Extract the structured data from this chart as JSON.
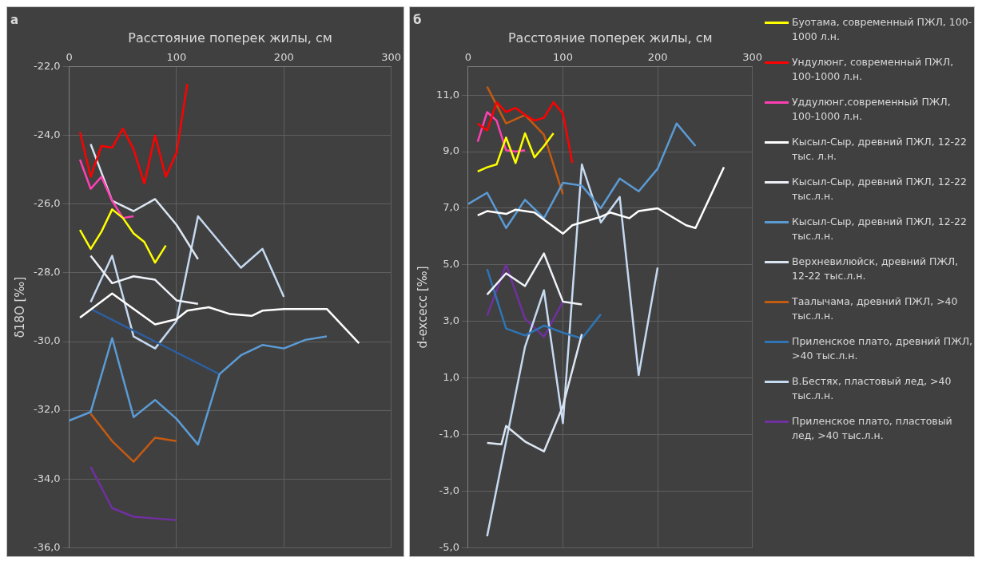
{
  "chart_data": [
    {
      "type": "line",
      "title": "а",
      "xlabel": "Расстояние поперек жилы, см",
      "ylabel": "δ18O [‰]",
      "xlim": [
        0,
        300
      ],
      "xticks": [
        0,
        100,
        200,
        300
      ],
      "ylim": [
        -36,
        -22
      ],
      "yticks": [
        {
          "value": -36,
          "label": "-36,0"
        },
        {
          "value": -34,
          "label": "-34,0"
        },
        {
          "value": -32,
          "label": "-32,0"
        },
        {
          "value": -30,
          "label": "-30,0"
        },
        {
          "value": -28,
          "label": "-28,0"
        },
        {
          "value": -26,
          "label": "-26,0"
        },
        {
          "value": -24,
          "label": "-24,0"
        },
        {
          "value": -22,
          "label": "-22,0"
        }
      ],
      "grid": true,
      "series": [
        {
          "color": "#ffff00",
          "x": [
            10,
            20,
            30,
            40,
            50,
            60,
            70,
            80,
            90
          ],
          "values": [
            -26.75,
            -27.3,
            -26.8,
            -26.15,
            -26.4,
            -26.85,
            -27.1,
            -27.7,
            -27.2
          ]
        },
        {
          "color": "#ff0000",
          "x": [
            10,
            20,
            30,
            40,
            50,
            60,
            70,
            80,
            90,
            100,
            110
          ],
          "values": [
            -23.9,
            -25.2,
            -24.3,
            -24.35,
            -23.8,
            -24.4,
            -25.4,
            -24.0,
            -25.2,
            -24.5,
            -22.5
          ]
        },
        {
          "color": "#ff3fb4",
          "x": [
            10,
            20,
            30,
            40,
            50,
            60
          ],
          "values": [
            -24.7,
            -25.55,
            -25.2,
            -25.9,
            -26.4,
            -26.35
          ]
        },
        {
          "color": "#ffffff",
          "x": [
            10,
            40,
            80,
            100,
            110,
            130,
            150,
            170,
            180,
            200,
            240,
            270
          ],
          "values": [
            -29.3,
            -28.6,
            -29.5,
            -29.35,
            -29.1,
            -29.0,
            -29.2,
            -29.25,
            -29.1,
            -29.05,
            -29.05,
            -30.05
          ]
        },
        {
          "color": "#eef2f8",
          "x": [
            20,
            40,
            60,
            80,
            100,
            120
          ],
          "values": [
            -27.5,
            -28.3,
            -28.1,
            -28.2,
            -28.8,
            -28.9
          ]
        },
        {
          "color": "#5b9bd5",
          "x": [
            0,
            20,
            40,
            60,
            80,
            100,
            120,
            140,
            160,
            180,
            200,
            220,
            240
          ],
          "values": [
            -32.3,
            -32.05,
            -29.9,
            -32.2,
            -31.7,
            -32.25,
            -33.0,
            -30.95,
            -30.4,
            -30.1,
            -30.2,
            -29.95,
            -29.85
          ]
        },
        {
          "color": "#dce6f2",
          "x": [
            20,
            40,
            60,
            80,
            100,
            120
          ],
          "values": [
            -24.25,
            -25.9,
            -26.2,
            -25.85,
            -26.6,
            -27.6
          ]
        },
        {
          "color": "#c55a11",
          "x": [
            20,
            40,
            60,
            80,
            100
          ],
          "values": [
            -32.1,
            -32.9,
            -33.5,
            -32.8,
            -32.9
          ]
        },
        {
          "color": "#2e5e9e",
          "x": [
            20,
            140
          ],
          "values": [
            -29.05,
            -30.95
          ]
        },
        {
          "color": "#c5d9f1",
          "x": [
            20,
            40,
            60,
            80,
            100,
            120,
            160,
            180,
            200
          ],
          "values": [
            -28.85,
            -27.5,
            -29.85,
            -30.2,
            -29.4,
            -26.35,
            -27.85,
            -27.3,
            -28.7
          ]
        },
        {
          "color": "#7030a0",
          "x": [
            20,
            40,
            60,
            80,
            100
          ],
          "values": [
            -33.65,
            -34.85,
            -35.1,
            -35.15,
            -35.2
          ]
        }
      ]
    },
    {
      "type": "line",
      "title": "б",
      "xlabel": "Расстояние поперек жилы, см",
      "ylabel": "d-excecc [‰]",
      "xlim": [
        0,
        300
      ],
      "xticks": [
        0,
        100,
        200,
        300
      ],
      "ylim": [
        -5,
        12
      ],
      "yticks": [
        {
          "value": -5,
          "label": "-5,0"
        },
        {
          "value": -3,
          "label": "-3,0"
        },
        {
          "value": -1,
          "label": "-1,0"
        },
        {
          "value": 1,
          "label": "1,0"
        },
        {
          "value": 3,
          "label": "3,0"
        },
        {
          "value": 5,
          "label": "5,0"
        },
        {
          "value": 7,
          "label": "7,0"
        },
        {
          "value": 9,
          "label": "9,0"
        },
        {
          "value": 11,
          "label": "11,0"
        }
      ],
      "grid": true,
      "legend": "right",
      "series": [
        {
          "name": "Буотама, современный ПЖЛ, 100-1000 л.н.",
          "color": "#ffff00",
          "x": [
            10,
            20,
            30,
            40,
            50,
            60,
            70,
            80,
            90
          ],
          "values": [
            8.3,
            8.45,
            8.55,
            9.5,
            8.6,
            9.65,
            8.8,
            9.2,
            9.65
          ]
        },
        {
          "name": "Ундулюнг, современный ПЖЛ, 100-1000 л.н.",
          "color": "#ff0000",
          "x": [
            10,
            20,
            30,
            40,
            50,
            60,
            70,
            80,
            90,
            100,
            110
          ],
          "values": [
            10.0,
            9.75,
            10.75,
            10.4,
            10.55,
            10.3,
            10.1,
            10.2,
            10.75,
            10.35,
            8.6
          ]
        },
        {
          "name": "Уддулюнг,современный ПЖЛ, 100-1000 л.н.",
          "color": "#ff3fb4",
          "x": [
            10,
            20,
            30,
            40,
            50,
            60
          ],
          "values": [
            9.35,
            10.4,
            10.1,
            9.05,
            9.0,
            9.05
          ]
        },
        {
          "name": "Кысыл-Сыр, древний ПЖЛ, 12-22 тыс. л.н.",
          "color": "#ffffff",
          "x": [
            10,
            20,
            40,
            50,
            70,
            80,
            100,
            110,
            120,
            140,
            150,
            170,
            180,
            200,
            230,
            240,
            270
          ],
          "values": [
            6.75,
            6.9,
            6.8,
            6.95,
            6.85,
            6.6,
            6.1,
            6.4,
            6.5,
            6.7,
            6.85,
            6.65,
            6.9,
            7.0,
            6.4,
            6.3,
            8.45
          ]
        },
        {
          "name": "Кысыл-Сыр, древний ПЖЛ, 12-22 тыс.л.н.",
          "color": "#eef2f8",
          "x": [
            20,
            40,
            60,
            80,
            100,
            120
          ],
          "values": [
            3.95,
            4.7,
            4.25,
            5.4,
            3.7,
            3.6
          ]
        },
        {
          "name": "Кысыл-Сыр, древний ПЖЛ, 12-22 тыс.л.н.",
          "color": "#5b9bd5",
          "x": [
            0,
            20,
            40,
            60,
            80,
            100,
            120,
            140,
            160,
            180,
            200,
            220,
            240
          ],
          "values": [
            7.15,
            7.55,
            6.3,
            7.3,
            6.65,
            7.9,
            7.8,
            7.0,
            8.05,
            7.6,
            8.4,
            10.0,
            9.2
          ]
        },
        {
          "name": "Верхневилюйск, древний ПЖЛ, 12-22 тыс.л.н.",
          "color": "#dce6f2",
          "x": [
            20,
            35,
            40,
            60,
            80,
            100,
            120
          ],
          "values": [
            -1.3,
            -1.35,
            -0.7,
            -1.25,
            -1.6,
            0.0,
            2.55
          ]
        },
        {
          "name": "Таалычама, древний ПЖЛ, >40 тыс.л.н.",
          "color": "#c55a11",
          "x": [
            20,
            40,
            60,
            80,
            100
          ],
          "values": [
            11.3,
            10.0,
            10.3,
            9.6,
            7.5
          ]
        },
        {
          "name": "Приленское плато, древний ПЖЛ, >40 тыс.л.н.",
          "color": "#2e75b6",
          "x": [
            20,
            40,
            60,
            80,
            100,
            120,
            140
          ],
          "values": [
            4.85,
            2.75,
            2.5,
            2.85,
            2.6,
            2.4,
            3.25
          ]
        },
        {
          "name": "В.Бестях, пластовый лед, >40 тыс.л.н.",
          "color": "#c5d9f1",
          "x": [
            20,
            60,
            80,
            100,
            120,
            140,
            160,
            180,
            200
          ],
          "values": [
            -4.6,
            2.1,
            4.1,
            -0.6,
            8.55,
            6.5,
            7.4,
            1.1,
            4.9
          ]
        },
        {
          "name": "Приленское плато, пластовый лед, >40 тыс.л.н.",
          "color": "#7030a0",
          "x": [
            20,
            40,
            60,
            80,
            100
          ],
          "values": [
            3.2,
            5.0,
            3.1,
            2.45,
            3.7
          ]
        }
      ]
    }
  ]
}
